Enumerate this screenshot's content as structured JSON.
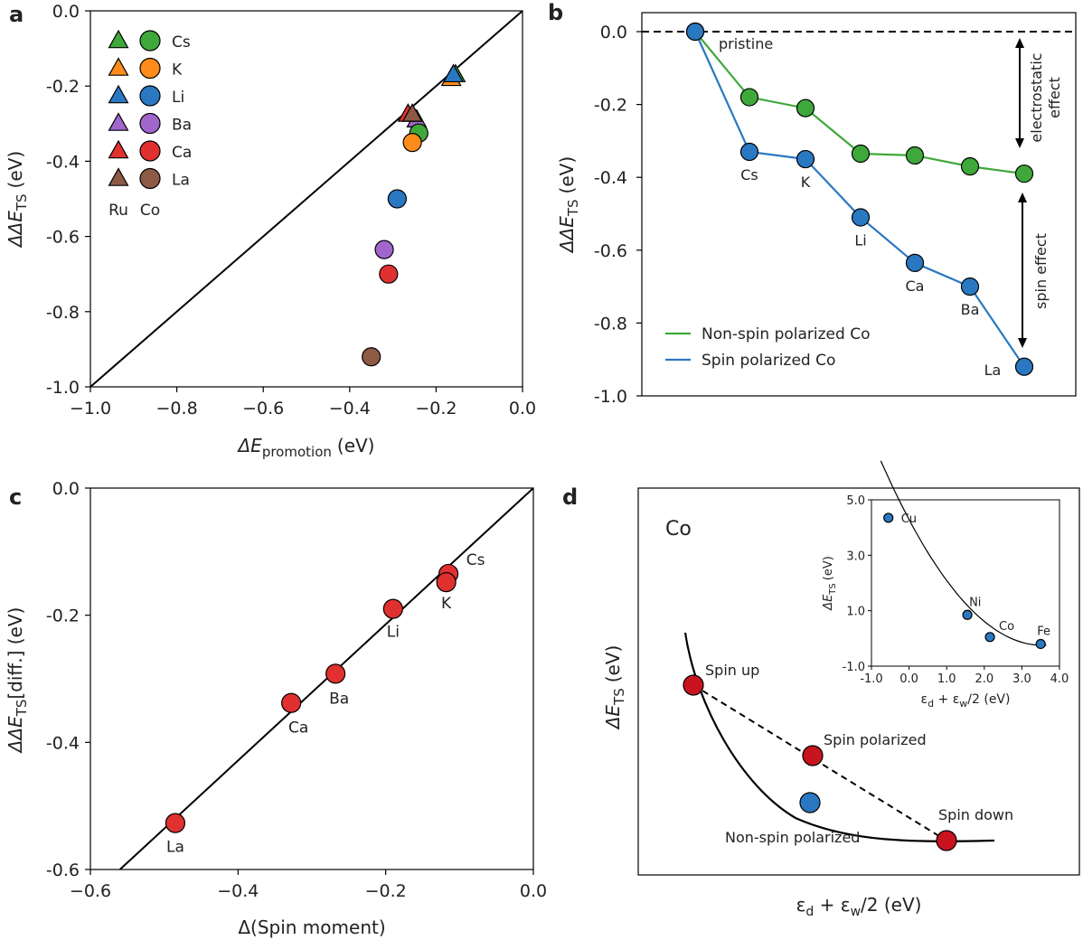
{
  "panel_labels": [
    "a",
    "b",
    "c",
    "d"
  ],
  "chart_data": [
    {
      "panel": "a",
      "type": "scatter",
      "xlabel": "ΔE",
      "xlabel_sub": "promotion",
      "xlabel_unit": "(eV)",
      "ylabel": "ΔΔE",
      "ylabel_sub": "TS",
      "ylabel_unit": "(eV)",
      "xlim": [
        -1.0,
        0.0
      ],
      "ylim": [
        -1.0,
        0.0
      ],
      "xticks": [
        "−1.0",
        "−0.8",
        "−0.6",
        "−0.4",
        "−0.2",
        "0.0"
      ],
      "yticks": [
        "0.0",
        "-0.2",
        "-0.4",
        "-0.6",
        "-0.8",
        "-1.0"
      ],
      "diagonal": [
        [
          -1.0,
          -1.0
        ],
        [
          0.0,
          0.0
        ]
      ],
      "legend_footer": [
        "Ru",
        "Co"
      ],
      "series": [
        {
          "name": "Cs",
          "color": "#3fa83b",
          "ru": [
            -0.155,
            -0.17
          ],
          "co": [
            -0.24,
            -0.325
          ]
        },
        {
          "name": "K",
          "color": "#ff8c1a",
          "ru": [
            -0.165,
            -0.18
          ],
          "co": [
            -0.255,
            -0.35
          ]
        },
        {
          "name": "Li",
          "color": "#2a78c2",
          "ru": [
            -0.16,
            -0.17
          ],
          "co": [
            -0.29,
            -0.5
          ]
        },
        {
          "name": "Ba",
          "color": "#a066cc",
          "ru": [
            -0.245,
            -0.29
          ],
          "co": [
            -0.32,
            -0.635
          ]
        },
        {
          "name": "Ca",
          "color": "#e03030",
          "ru": [
            -0.265,
            -0.275
          ],
          "co": [
            -0.31,
            -0.7
          ]
        },
        {
          "name": "La",
          "color": "#8c5a45",
          "ru": [
            -0.255,
            -0.275
          ],
          "co": [
            -0.35,
            -0.92
          ]
        }
      ]
    },
    {
      "panel": "b",
      "type": "line",
      "ylabel": "ΔΔE",
      "ylabel_sub": "TS",
      "ylabel_unit": "(eV)",
      "ylim": [
        -1.0,
        0.0
      ],
      "yticks": [
        "0.0",
        "-0.2",
        "-0.4",
        "-0.6",
        "-0.8",
        "-1.0"
      ],
      "categories": [
        "pristine",
        "Cs",
        "K",
        "Li",
        "Ca",
        "Ba",
        "La"
      ],
      "series": [
        {
          "name": "Non-spin polarized Co",
          "color": "#3fa83b",
          "values": [
            0.0,
            -0.18,
            -0.21,
            -0.335,
            -0.34,
            -0.37,
            -0.39
          ]
        },
        {
          "name": "Spin polarized Co",
          "color": "#2a78c2",
          "values": [
            0.0,
            -0.33,
            -0.35,
            -0.51,
            -0.635,
            -0.7,
            -0.92
          ]
        }
      ],
      "annotations": {
        "electrostatic": [
          "electrostatic",
          "effect"
        ],
        "spin": "spin effect"
      }
    },
    {
      "panel": "c",
      "type": "scatter",
      "xlabel": "Δ(Spin moment)",
      "ylabel": "ΔΔE",
      "ylabel_sub": "TS",
      "ylabel_suffix": "[diff.] (eV)",
      "xlim": [
        -0.6,
        0.0
      ],
      "ylim": [
        -0.6,
        0.0
      ],
      "xticks": [
        "−0.6",
        "−0.4",
        "−0.2",
        "0.0"
      ],
      "yticks": [
        "0.0",
        "-0.2",
        "-0.4",
        "-0.6"
      ],
      "fit_line": [
        [
          -0.56,
          -0.6
        ],
        [
          0.0,
          0.0
        ]
      ],
      "points": [
        {
          "label": "Cs",
          "x": -0.115,
          "y": -0.135
        },
        {
          "label": "K",
          "x": -0.118,
          "y": -0.148
        },
        {
          "label": "Li",
          "x": -0.19,
          "y": -0.19
        },
        {
          "label": "Ba",
          "x": -0.268,
          "y": -0.292
        },
        {
          "label": "Ca",
          "x": -0.328,
          "y": -0.338
        },
        {
          "label": "La",
          "x": -0.485,
          "y": -0.527
        }
      ],
      "color": "#e03030"
    },
    {
      "panel": "d",
      "type": "line",
      "title": "Co",
      "xlabel": "ε",
      "xlabel_sub1": "d",
      "xlabel_mid": " + ε",
      "xlabel_sub2": "w",
      "xlabel_tail": "/2 (eV)",
      "ylabel": "ΔE",
      "ylabel_sub": "TS",
      "ylabel_unit": "(eV)",
      "points": [
        {
          "label": "Spin up",
          "color": "#c8141e"
        },
        {
          "label": "Spin polarized",
          "color": "#c8141e"
        },
        {
          "label": "Spin down",
          "color": "#c8141e"
        },
        {
          "label": "Non-spin polarized",
          "color": "#2a78c2"
        }
      ],
      "inset": {
        "xlim": [
          -1.0,
          4.0
        ],
        "ylim": [
          -1.0,
          5.0
        ],
        "xticks": [
          "-1.0",
          "0.0",
          "1.0",
          "2.0",
          "3.0",
          "4.0"
        ],
        "yticks": [
          "5.0",
          "3.0",
          "1.0",
          "-1.0"
        ],
        "xlabel": "ε",
        "xlabel_sub1": "d",
        "xlabel_mid": " + ε",
        "xlabel_sub2": "w",
        "xlabel_tail": "/2  (eV)",
        "ylabel": "ΔE",
        "ylabel_sub": "TS",
        "ylabel_unit": "(eV)",
        "points": [
          {
            "label": "Cu",
            "x": -0.55,
            "y": 4.35
          },
          {
            "label": "Ni",
            "x": 1.55,
            "y": 0.85
          },
          {
            "label": "Co",
            "x": 2.15,
            "y": 0.05
          },
          {
            "label": "Fe",
            "x": 3.5,
            "y": -0.2
          }
        ]
      }
    }
  ]
}
